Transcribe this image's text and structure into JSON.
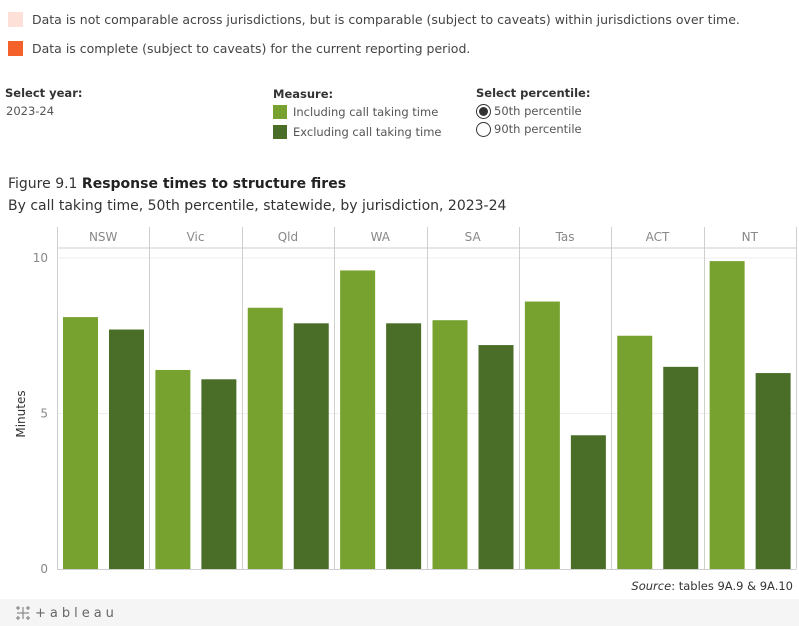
{
  "caveat_legend": [
    {
      "label": "Data is not comparable across jurisdictions, but is comparable (subject to caveats) within jurisdictions over time.",
      "color": "#fde0d8"
    },
    {
      "label": "Data is complete (subject to caveats) for the current reporting period.",
      "color": "#f4612a"
    }
  ],
  "controls": {
    "year": {
      "label": "Select year:",
      "value": "2023-24"
    },
    "measure": {
      "label": "Measure:",
      "items": [
        {
          "label": "Including call taking time",
          "color": "#78a22f"
        },
        {
          "label": "Excluding call taking time",
          "color": "#4a6e28"
        }
      ]
    },
    "percentile": {
      "label": "Select percentile:",
      "options": [
        {
          "label": "50th percentile",
          "selected": true
        },
        {
          "label": "90th percentile",
          "selected": false
        }
      ]
    }
  },
  "figure": {
    "number": "Figure 9.1",
    "title": "Response times to structure fires",
    "subtitle": "By call taking time, 50th percentile, statewide, by jurisdiction, 2023-24"
  },
  "chart_data": {
    "type": "bar",
    "title": "Response times to structure fires",
    "subtitle": "By call taking time, 50th percentile, statewide, by jurisdiction, 2023-24",
    "xlabel": "",
    "ylabel": "Minutes",
    "ylim": [
      0,
      10.3
    ],
    "yticks": [
      0,
      5,
      10
    ],
    "grid": true,
    "legend": "top",
    "categories": [
      "NSW",
      "Vic",
      "Qld",
      "WA",
      "SA",
      "Tas",
      "ACT",
      "NT"
    ],
    "series": [
      {
        "name": "Including call taking time",
        "color": "#78a22f",
        "values": [
          8.1,
          6.4,
          8.4,
          9.6,
          8.0,
          8.6,
          7.5,
          9.9
        ]
      },
      {
        "name": "Excluding call taking time",
        "color": "#4a6e28",
        "values": [
          7.7,
          6.1,
          7.9,
          7.9,
          7.2,
          4.3,
          6.5,
          6.3
        ]
      }
    ]
  },
  "source": {
    "label": "Source",
    "text": ": tables 9A.9 & 9A.10"
  },
  "footer": {
    "brand": "+ableau"
  }
}
